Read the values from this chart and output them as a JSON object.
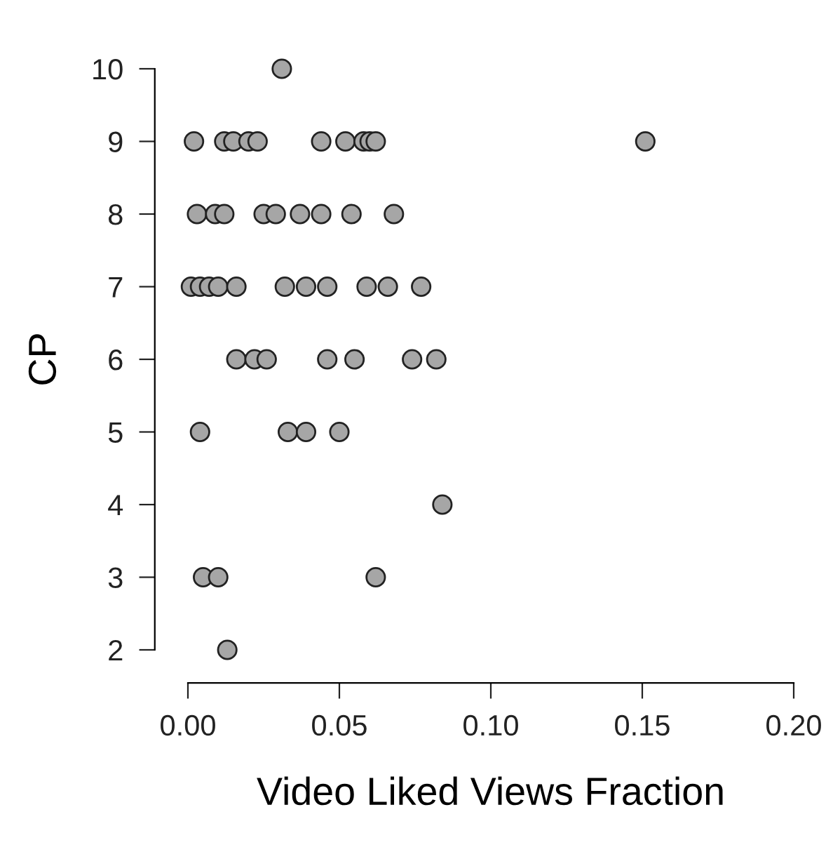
{
  "chart_data": {
    "type": "scatter",
    "xlabel": "Video Liked Views Fraction",
    "ylabel": "CP",
    "x": [
      0.031,
      0.002,
      0.012,
      0.015,
      0.02,
      0.023,
      0.044,
      0.052,
      0.058,
      0.06,
      0.062,
      0.151,
      0.003,
      0.009,
      0.012,
      0.025,
      0.029,
      0.037,
      0.044,
      0.054,
      0.068,
      0.001,
      0.004,
      0.007,
      0.01,
      0.016,
      0.032,
      0.039,
      0.046,
      0.059,
      0.066,
      0.077,
      0.016,
      0.022,
      0.026,
      0.046,
      0.055,
      0.074,
      0.082,
      0.004,
      0.033,
      0.039,
      0.05,
      0.084,
      0.005,
      0.01,
      0.062,
      0.013
    ],
    "values": [
      10,
      9,
      9,
      9,
      9,
      9,
      9,
      9,
      9,
      9,
      9,
      9,
      8,
      8,
      8,
      8,
      8,
      8,
      8,
      8,
      8,
      7,
      7,
      7,
      7,
      7,
      7,
      7,
      7,
      7,
      7,
      7,
      6,
      6,
      6,
      6,
      6,
      6,
      6,
      5,
      5,
      5,
      5,
      4,
      3,
      3,
      3,
      2
    ],
    "color": "#a6a6a6",
    "marker": "circle",
    "grid": false,
    "legend": false,
    "xlim": [
      0,
      0.2
    ],
    "xticks": [
      {
        "value": 0,
        "label": "0.00"
      },
      {
        "value": 0.05,
        "label": "0.05"
      },
      {
        "value": 0.1,
        "label": "0.10"
      },
      {
        "value": 0.15,
        "label": "0.15"
      },
      {
        "value": 0.2,
        "label": "0.20"
      }
    ],
    "ylim": [
      2,
      10
    ],
    "yticks": [
      2,
      3,
      4,
      5,
      6,
      7,
      8,
      9,
      10
    ]
  }
}
